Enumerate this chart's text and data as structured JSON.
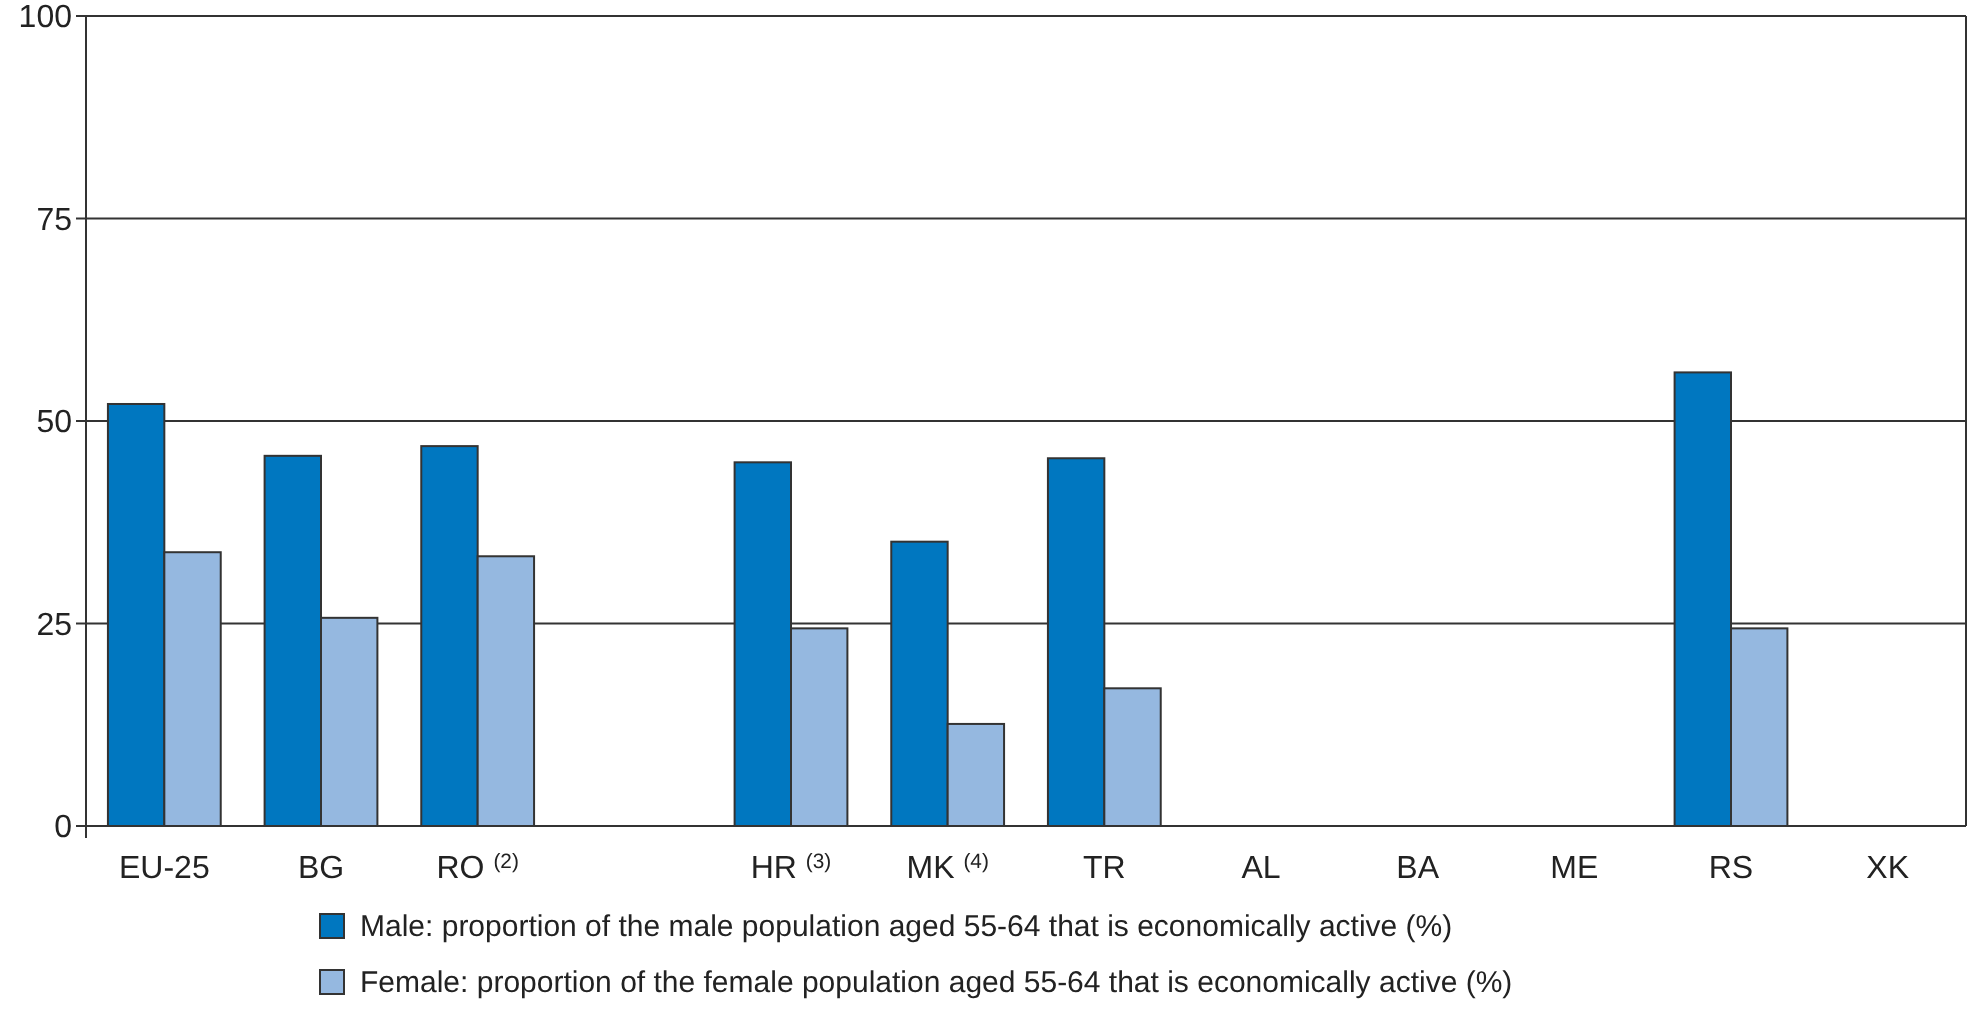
{
  "chart_data": {
    "type": "bar",
    "categories": [
      "EU-25",
      "BG",
      "RO $^{(2)}$",
      null,
      "HR $^{(3)}$",
      "MK $^{(4)}$",
      "TR",
      "AL",
      "BA",
      "ME",
      "RS",
      "XK"
    ],
    "series": [
      {
        "name": "Male: proportion of the male population aged 55-64 that is economically active (%)",
        "color": "#0077c0",
        "values": [
          52.1,
          45.7,
          46.9,
          null,
          44.9,
          35.1,
          45.4,
          null,
          null,
          null,
          56.0,
          null
        ]
      },
      {
        "name": "Female: proportion of the female population aged 55-64 that is economically active (%)",
        "color": "#95b8e0",
        "values": [
          33.8,
          25.7,
          33.3,
          null,
          24.4,
          12.6,
          17.0,
          null,
          null,
          null,
          24.4,
          null
        ]
      }
    ],
    "ylim": [
      0,
      100
    ],
    "yticks": [
      0,
      25,
      50,
      75,
      100
    ],
    "grid": "y",
    "legend": "bottom"
  }
}
